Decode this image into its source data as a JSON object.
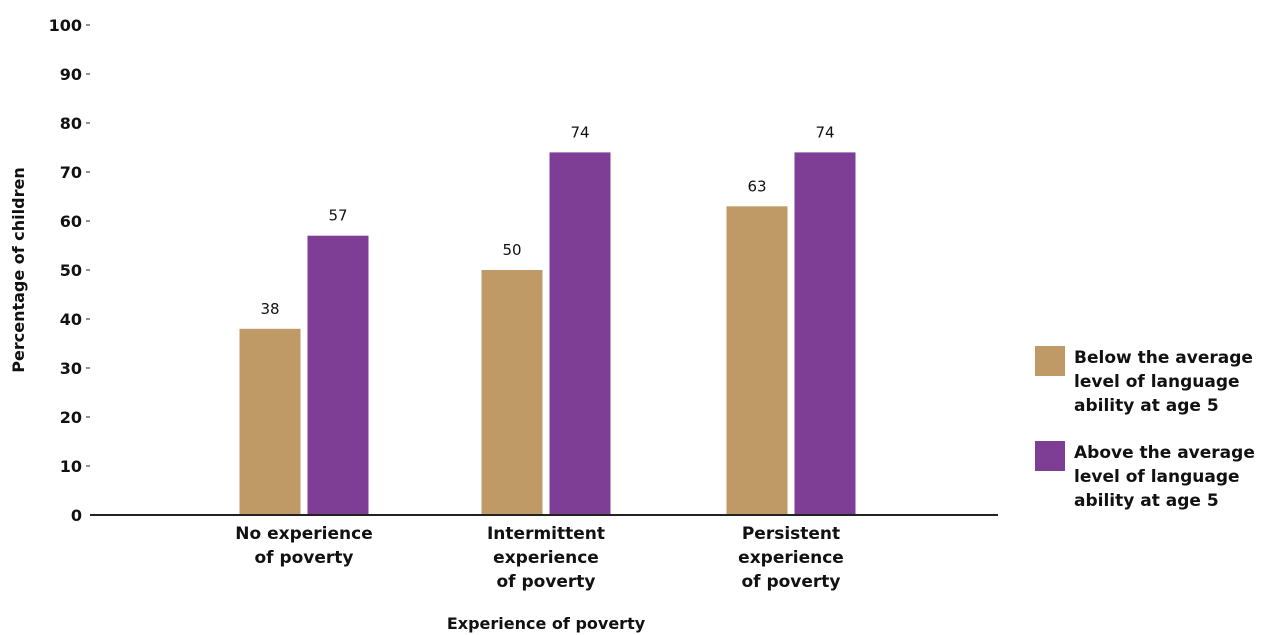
{
  "chart_data": {
    "type": "bar",
    "categories": [
      [
        "No experience",
        "of poverty"
      ],
      [
        "Intermittent",
        "experience",
        "of poverty"
      ],
      [
        "Persistent",
        "experience",
        "of poverty"
      ]
    ],
    "series": [
      {
        "name": [
          "Below the average",
          "level of language",
          "ability at age 5"
        ],
        "values": [
          38,
          50,
          63
        ],
        "color": "#bf9966"
      },
      {
        "name": [
          "Above the average",
          "level of language",
          "ability at age 5"
        ],
        "values": [
          57,
          74,
          74
        ],
        "color": "#7f3e96"
      }
    ],
    "xlabel": "Experience of poverty",
    "ylabel": "Percentage of children",
    "ylim": [
      0,
      100
    ],
    "yticks": [
      0,
      10,
      20,
      30,
      40,
      50,
      60,
      70,
      80,
      90,
      100
    ],
    "legend_position": "right",
    "grid": false
  }
}
